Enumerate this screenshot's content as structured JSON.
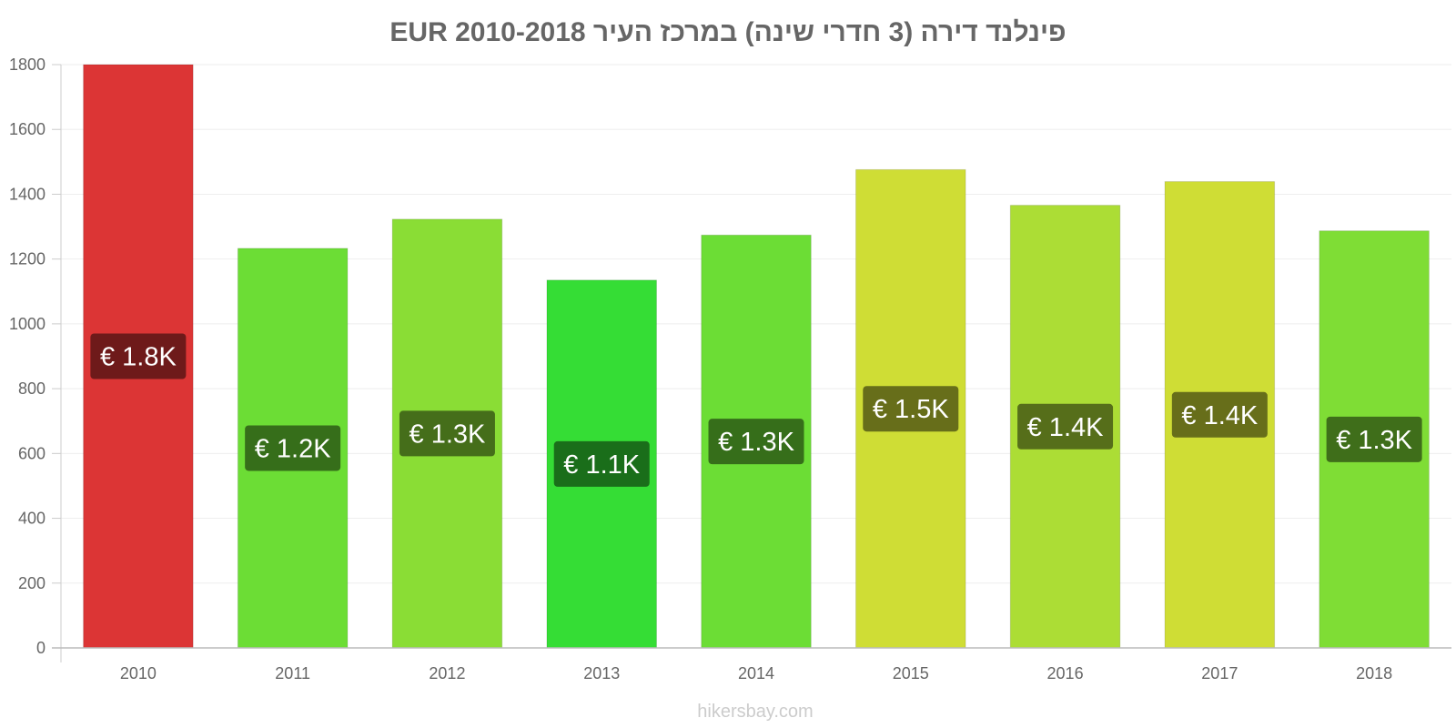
{
  "chart_data": {
    "type": "bar",
    "title": "פינלנד דירה (3 חדרי שינה) במרכז העיר 2010-2018 EUR",
    "xlabel": "",
    "ylabel": "",
    "categories": [
      "2010",
      "2011",
      "2012",
      "2013",
      "2014",
      "2015",
      "2016",
      "2017",
      "2018"
    ],
    "values": [
      1800,
      1233,
      1323,
      1135,
      1274,
      1476,
      1366,
      1439,
      1287
    ],
    "data_labels": [
      "€ 1.8K",
      "€ 1.2K",
      "€ 1.3K",
      "€ 1.1K",
      "€ 1.3K",
      "€ 1.5K",
      "€ 1.4K",
      "€ 1.4K",
      "€ 1.3K"
    ],
    "bar_colors": [
      "#dc3535",
      "#6cdd35",
      "#8add35",
      "#35dd35",
      "#6cdd35",
      "#cfdd35",
      "#acdd35",
      "#cfdd35",
      "#7fdd35"
    ],
    "label_bg_colors": [
      "#6e1a1a",
      "#366e1a",
      "#456e1a",
      "#1a6e1a",
      "#366e1a",
      "#676e1a",
      "#566e1a",
      "#676e1a",
      "#3f6e1a"
    ],
    "ylim": [
      0,
      1800
    ],
    "yticks": [
      "0",
      "200",
      "400",
      "600",
      "800",
      "1000",
      "1200",
      "1400",
      "1600",
      "1800"
    ],
    "grid": true,
    "legend": "none"
  },
  "watermark": "hikersbay.com"
}
